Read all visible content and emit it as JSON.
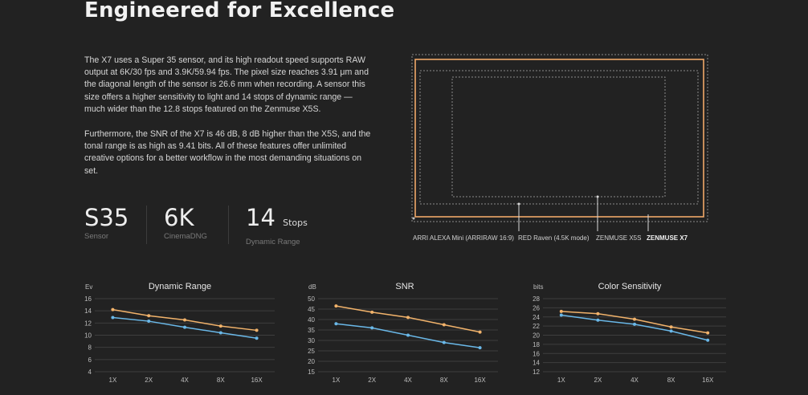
{
  "header": {
    "title": "Engineered for Excellence"
  },
  "intro": {
    "paragraph1": "The X7 uses a Super 35 sensor, and its high readout speed supports RAW output at 6K/30 fps and 3.9K/59.94 fps. The pixel size reaches 3.91 μm and the diagonal length of the sensor is 26.6 mm when recording. A sensor this size offers a higher sensitivity to light and 14 stops of dynamic range — much wider than the 12.8 stops featured on the Zenmuse X5S.",
    "paragraph2": "Furthermore, the SNR of the X7 is 46 dB, 8 dB higher than the X5S, and the tonal range is as high as 9.41 bits. All of these features offer unlimited creative options for a better workflow in the most demanding situations on set."
  },
  "stats": [
    {
      "value": "S35",
      "unit": "",
      "caption": "Sensor"
    },
    {
      "value": "6K",
      "unit": "",
      "caption": "CinemaDNG"
    },
    {
      "value": "14",
      "unit": "Stops",
      "caption": "Dynamic Range"
    }
  ],
  "sensor_diagram": {
    "labels": [
      "ARRI ALEXA Mini (ARRIRAW 16:9)",
      "RED Raven (4.5K mode)",
      "ZENMUSE X5S",
      "ZENMUSE X7"
    ],
    "colors": {
      "x7": "#f0a868",
      "outline": "#8a8a8a"
    }
  },
  "colors": {
    "x7_line": "#f2b36b",
    "x5s_line": "#6ab8e8",
    "grid": "#3e3e3e"
  },
  "chart_data": [
    {
      "type": "line",
      "title": "Dynamic Range",
      "ylabel": "Ev",
      "categories": [
        "1X",
        "2X",
        "4X",
        "8X",
        "16X"
      ],
      "ylim": [
        4,
        16
      ],
      "yticks": [
        4,
        6,
        8,
        10,
        12,
        14,
        16
      ],
      "series": [
        {
          "values": [
            14.2,
            13.2,
            12.5,
            11.5,
            10.8
          ]
        },
        {
          "values": [
            12.9,
            12.3,
            11.3,
            10.4,
            9.5
          ]
        }
      ]
    },
    {
      "type": "line",
      "title": "SNR",
      "ylabel": "dB",
      "categories": [
        "1X",
        "2X",
        "4X",
        "8X",
        "16X"
      ],
      "ylim": [
        15,
        50
      ],
      "yticks": [
        15,
        20,
        25,
        30,
        35,
        40,
        45,
        50
      ],
      "series": [
        {
          "values": [
            46.5,
            43.5,
            41,
            37.5,
            34
          ]
        },
        {
          "values": [
            38,
            36,
            32.5,
            29,
            26.5
          ]
        }
      ]
    },
    {
      "type": "line",
      "title": "Color Sensitivity",
      "ylabel": "bits",
      "categories": [
        "1X",
        "2X",
        "4X",
        "8X",
        "16X"
      ],
      "ylim": [
        12,
        28
      ],
      "yticks": [
        12,
        14,
        16,
        18,
        20,
        22,
        24,
        26,
        28
      ],
      "series": [
        {
          "values": [
            25.2,
            24.7,
            23.5,
            21.8,
            20.5
          ]
        },
        {
          "values": [
            24.4,
            23.3,
            22.4,
            20.9,
            18.9
          ]
        }
      ]
    }
  ]
}
